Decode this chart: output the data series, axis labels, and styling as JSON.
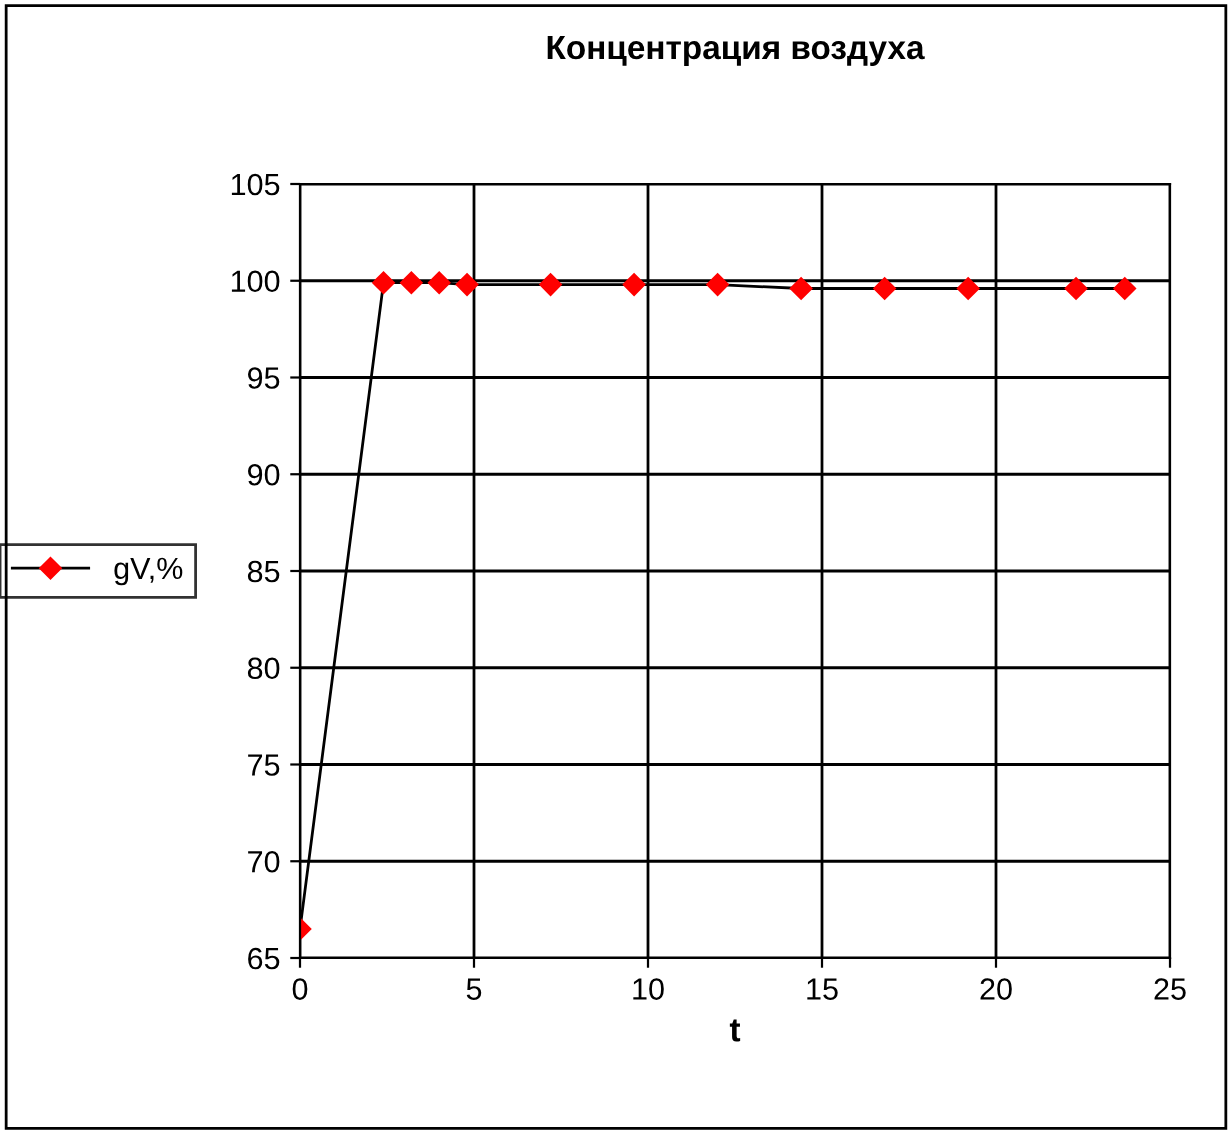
{
  "chart_data": {
    "type": "line",
    "title": "Концентрация воздуха",
    "xlabel": "t",
    "x": [
      0,
      2.4,
      3.2,
      4.0,
      4.8,
      7.2,
      9.6,
      12.0,
      14.4,
      16.8,
      19.2,
      22.3,
      23.7
    ],
    "series": [
      {
        "name": "gV,%",
        "color": "#ff0000",
        "values": [
          66.5,
          99.9,
          99.9,
          99.9,
          99.8,
          99.8,
          99.8,
          99.8,
          99.6,
          99.6,
          99.6,
          99.6,
          99.6
        ]
      }
    ],
    "xlim": [
      0,
      25
    ],
    "xticks": [
      0,
      5,
      10,
      15,
      20,
      25
    ],
    "ylim": [
      65,
      105
    ],
    "yticks": [
      65,
      70,
      75,
      80,
      85,
      90,
      95,
      100,
      105
    ],
    "grid": true,
    "legend": "left",
    "marker": "diamond",
    "line_style": "solid"
  }
}
